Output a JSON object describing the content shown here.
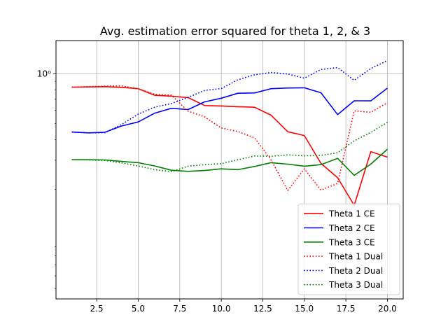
{
  "chart_data": {
    "type": "line",
    "title": "Avg. estimation error squared for theta 1, 2, & 3",
    "xlabel": "",
    "ylabel": "",
    "xlim": [
      0.05,
      20.95
    ],
    "ylim_log10": [
      -1.361,
      0.2
    ],
    "yscale": "log",
    "grid": true,
    "legend_position": "lower-right",
    "x": [
      1,
      2,
      3,
      4,
      5,
      6,
      7,
      8,
      9,
      10,
      11,
      12,
      13,
      14,
      15,
      16,
      17,
      18,
      19,
      20
    ],
    "x_ticks": [
      2.5,
      5.0,
      7.5,
      10.0,
      12.5,
      15.0,
      17.5,
      20.0
    ],
    "x_tick_labels": [
      "2.5",
      "5.0",
      "7.5",
      "10.0",
      "12.5",
      "15.0",
      "17.5",
      "20.0"
    ],
    "y_ticks": [
      1
    ],
    "y_tick_labels": [
      "10⁰"
    ],
    "series": [
      {
        "name": "Theta 1 CE",
        "color": "#ff0000",
        "dash": "solid",
        "values": [
          0.829,
          0.832,
          0.835,
          0.827,
          0.812,
          0.741,
          0.731,
          0.717,
          0.642,
          0.638,
          0.632,
          0.627,
          0.561,
          0.446,
          0.423,
          0.287,
          0.235,
          0.16,
          0.338,
          0.313
        ]
      },
      {
        "name": "Theta 2 CE",
        "color": "#0000ff",
        "dash": "solid",
        "values": [
          0.444,
          0.439,
          0.443,
          0.483,
          0.511,
          0.578,
          0.618,
          0.607,
          0.676,
          0.711,
          0.762,
          0.765,
          0.812,
          0.82,
          0.822,
          0.767,
          0.566,
          0.686,
          0.685,
          0.818
        ]
      },
      {
        "name": "Theta 3 CE",
        "color": "#008000",
        "dash": "solid",
        "values": [
          0.302,
          0.302,
          0.301,
          0.295,
          0.29,
          0.277,
          0.261,
          0.257,
          0.26,
          0.266,
          0.263,
          0.275,
          0.29,
          0.284,
          0.276,
          0.282,
          0.308,
          0.243,
          0.284,
          0.35
        ]
      },
      {
        "name": "Theta 1 Dual",
        "color": "#ff0000",
        "dash": "dotted",
        "values": [
          0.829,
          0.835,
          0.841,
          0.845,
          0.81,
          0.75,
          0.742,
          0.594,
          0.548,
          0.47,
          0.447,
          0.41,
          0.301,
          0.197,
          0.266,
          0.198,
          0.217,
          0.596,
          0.584,
          0.668
        ]
      },
      {
        "name": "Theta 2 Dual",
        "color": "#0000ff",
        "dash": "dotted",
        "values": [
          0.444,
          0.439,
          0.44,
          0.493,
          0.57,
          0.628,
          0.66,
          0.719,
          0.792,
          0.813,
          0.919,
          0.985,
          1.016,
          0.996,
          0.939,
          1.06,
          1.089,
          0.912,
          1.075,
          1.201
        ]
      },
      {
        "name": "Theta 3 Dual",
        "color": "#008000",
        "dash": "dotted",
        "values": [
          0.302,
          0.301,
          0.299,
          0.289,
          0.277,
          0.263,
          0.256,
          0.276,
          0.282,
          0.286,
          0.302,
          0.318,
          0.317,
          0.323,
          0.319,
          0.321,
          0.333,
          0.393,
          0.442,
          0.508
        ]
      }
    ]
  }
}
